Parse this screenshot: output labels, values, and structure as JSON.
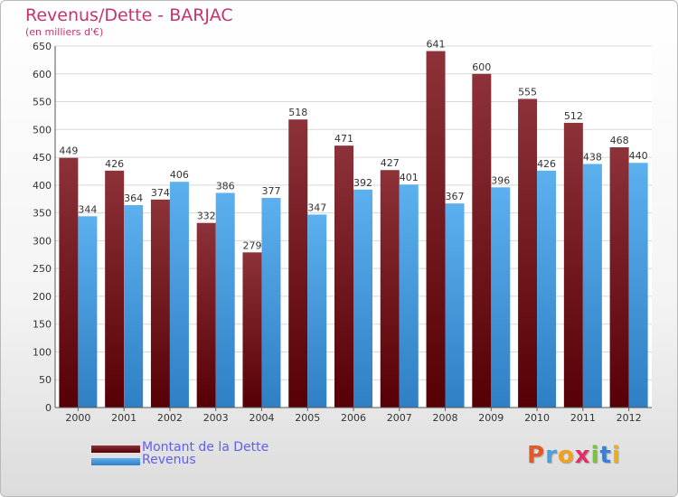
{
  "chart_data": {
    "type": "bar",
    "title": "Revenus/Dette - BARJAC",
    "subtitle": "(en milliers d'€)",
    "categories": [
      "2000",
      "2001",
      "2002",
      "2003",
      "2004",
      "2005",
      "2006",
      "2007",
      "2008",
      "2009",
      "2010",
      "2011",
      "2012"
    ],
    "series": [
      {
        "name": "Montant de la Dette",
        "color": "#7a1c22",
        "values": [
          449,
          426,
          374,
          332,
          279,
          518,
          471,
          427,
          641,
          600,
          555,
          512,
          468
        ]
      },
      {
        "name": "Revenus",
        "color": "#4a9fe0",
        "values": [
          344,
          364,
          406,
          386,
          377,
          347,
          392,
          401,
          367,
          396,
          426,
          438,
          440
        ]
      }
    ],
    "yticks": [
      0,
      50,
      100,
      150,
      200,
      250,
      300,
      350,
      400,
      450,
      500,
      550,
      600,
      650
    ],
    "ylim": [
      0,
      650
    ],
    "grid": true,
    "legend_position": "bottom-left"
  },
  "logo": {
    "text": "Proxiti",
    "colors": [
      "#e05a2b",
      "#4a9fe0",
      "#f0a020",
      "#e0306a",
      "#7cc242",
      "#3a7fd0",
      "#e8b020"
    ]
  }
}
